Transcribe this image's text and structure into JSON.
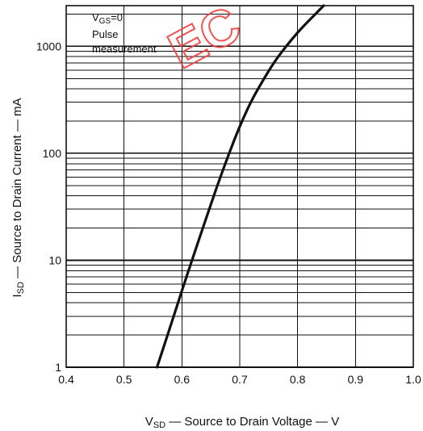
{
  "chart_data": {
    "type": "line",
    "title": "",
    "xlabel": "VSD — Source to Drain Voltage — V",
    "xlabel_parts": {
      "symbol": "V",
      "subscript": "SD",
      "text": " — Source to Drain Voltage — V"
    },
    "ylabel": "ISD — Source to Drain Current — mA",
    "ylabel_parts": {
      "symbol": "I",
      "subscript": "SD",
      "text": " — Source to Drain Current — mA"
    },
    "xlim": [
      0.4,
      1.0
    ],
    "ylim": [
      1,
      2400
    ],
    "y_scale": "log",
    "grid": true,
    "x_ticks": [
      "0.4",
      "0.5",
      "0.6",
      "0.7",
      "0.8",
      "0.9",
      "1.0"
    ],
    "x_tick_values": [
      0.4,
      0.5,
      0.6,
      0.7,
      0.8,
      0.9,
      1.0
    ],
    "y_ticks": [
      "1",
      "10",
      "100",
      "1000"
    ],
    "y_tick_values": [
      1,
      10,
      100,
      1000
    ],
    "annotations": {
      "condition_symbol": "V",
      "condition_subscript": "GS",
      "condition_value": "=0",
      "line2": "Pulse",
      "line3": "measurement"
    },
    "series": [
      {
        "x": [
          0.557,
          0.58,
          0.6,
          0.62,
          0.64,
          0.66,
          0.68,
          0.7,
          0.72,
          0.74,
          0.76,
          0.78,
          0.8,
          0.82,
          0.845
        ],
        "y": [
          1,
          2.4,
          5.2,
          11,
          23,
          48,
          95,
          180,
          310,
          480,
          720,
          1000,
          1350,
          1750,
          2400
        ]
      }
    ],
    "watermark": "EC"
  },
  "colors": {
    "ink": "#111111",
    "watermark": "#f04040",
    "background": "#ffffff"
  }
}
